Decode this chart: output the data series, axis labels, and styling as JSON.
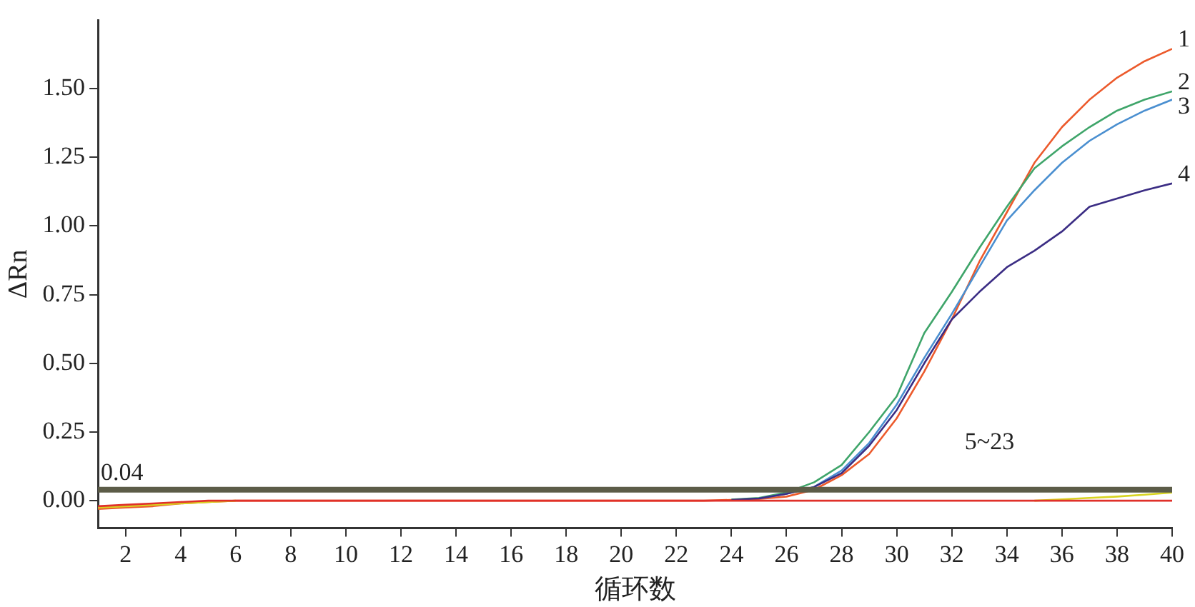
{
  "chart_data": {
    "type": "line",
    "xlabel": "循环数",
    "ylabel": "ΔRn",
    "x": [
      1,
      2,
      3,
      4,
      5,
      6,
      7,
      8,
      9,
      10,
      11,
      12,
      13,
      14,
      15,
      16,
      17,
      18,
      19,
      20,
      21,
      22,
      23,
      24,
      25,
      26,
      27,
      28,
      29,
      30,
      31,
      32,
      33,
      34,
      35,
      36,
      37,
      38,
      39,
      40
    ],
    "series": [
      {
        "name": "1",
        "color": "#ec5a2c",
        "values": [
          -0.03,
          -0.025,
          -0.02,
          -0.01,
          -0.005,
          0,
          0,
          0,
          0,
          0,
          0,
          0,
          0,
          0,
          0,
          0,
          0,
          0,
          0,
          0,
          0,
          0,
          0,
          0.003,
          0.006,
          0.015,
          0.04,
          0.093,
          0.17,
          0.3,
          0.47,
          0.66,
          0.87,
          1.05,
          1.23,
          1.36,
          1.46,
          1.54,
          1.6,
          1.645
        ]
      },
      {
        "name": "2",
        "color": "#3fa56a",
        "values": [
          null,
          null,
          null,
          null,
          null,
          null,
          null,
          null,
          null,
          null,
          null,
          null,
          null,
          null,
          null,
          null,
          null,
          null,
          null,
          null,
          null,
          null,
          null,
          0.004,
          0.01,
          0.03,
          0.067,
          0.13,
          0.25,
          0.38,
          0.61,
          0.76,
          0.92,
          1.07,
          1.21,
          1.29,
          1.36,
          1.42,
          1.46,
          1.49
        ]
      },
      {
        "name": "3",
        "color": "#4a8fd0",
        "values": [
          null,
          null,
          null,
          null,
          null,
          null,
          null,
          null,
          null,
          null,
          null,
          null,
          null,
          null,
          null,
          null,
          null,
          null,
          null,
          null,
          null,
          null,
          null,
          null,
          0.008,
          0.025,
          0.05,
          0.11,
          0.21,
          0.35,
          0.52,
          0.68,
          0.85,
          1.02,
          1.13,
          1.23,
          1.31,
          1.37,
          1.42,
          1.46
        ]
      },
      {
        "name": "4",
        "color": "#3b2d84",
        "values": [
          null,
          null,
          null,
          null,
          null,
          null,
          null,
          null,
          null,
          null,
          null,
          null,
          null,
          null,
          null,
          null,
          null,
          null,
          null,
          null,
          null,
          null,
          null,
          0.003,
          0.008,
          0.025,
          0.05,
          0.1,
          0.2,
          0.33,
          0.5,
          0.66,
          0.76,
          0.85,
          0.91,
          0.98,
          1.07,
          1.1,
          1.13,
          1.155
        ]
      },
      {
        "color": "#d8d420",
        "values": [
          -0.025,
          -0.02,
          -0.015,
          -0.01,
          -0.005,
          0,
          null,
          null,
          null,
          null,
          null,
          null,
          null,
          null,
          null,
          null,
          null,
          null,
          null,
          null,
          null,
          null,
          null,
          null,
          null,
          null,
          null,
          null,
          null,
          null,
          null,
          null,
          null,
          null,
          0,
          0.005,
          0.01,
          0.015,
          0.022,
          0.03
        ]
      },
      {
        "color": "#e0302a",
        "values": [
          -0.02,
          -0.015,
          -0.01,
          -0.005,
          0,
          0,
          0,
          0,
          0,
          0,
          0,
          0,
          0,
          0,
          0,
          0,
          0,
          0,
          0,
          0,
          0,
          0,
          0,
          0,
          0,
          0,
          0,
          0,
          0,
          0,
          0,
          0,
          0,
          0,
          0,
          0,
          0,
          0,
          0,
          0
        ]
      }
    ],
    "xlim": [
      1,
      40
    ],
    "xticks": [
      2,
      4,
      6,
      8,
      10,
      12,
      14,
      16,
      18,
      20,
      22,
      24,
      26,
      28,
      30,
      32,
      34,
      36,
      38,
      40
    ],
    "ylim": [
      -0.1,
      1.75
    ],
    "yticks": [
      {
        "value": 0,
        "label": "0.00"
      },
      {
        "value": 0.25,
        "label": "0.25"
      },
      {
        "value": 0.5,
        "label": "0.50"
      },
      {
        "value": 0.75,
        "label": "0.75"
      },
      {
        "value": 1,
        "label": "1.00"
      },
      {
        "value": 1.25,
        "label": "1.25"
      },
      {
        "value": 1.5,
        "label": "1.50"
      }
    ],
    "ref_lines": [
      {
        "axis": "y",
        "value": 0.04,
        "label": "0.04",
        "color": "#5c5c48"
      }
    ],
    "annotations": [
      "5~23"
    ],
    "grid": false,
    "legend": false,
    "marker": "none",
    "line_style": "solid"
  }
}
